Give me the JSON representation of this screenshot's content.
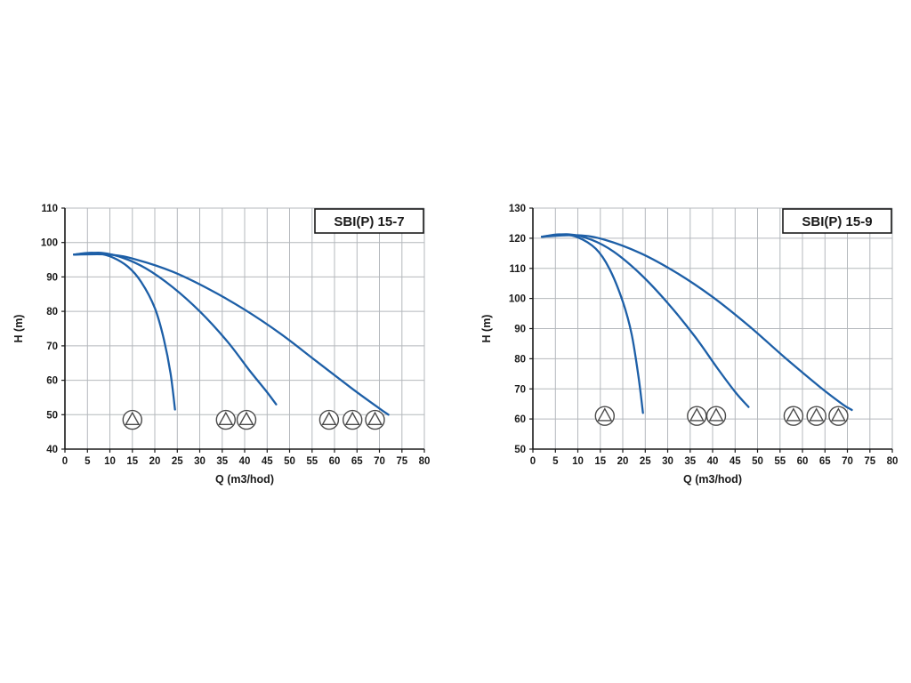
{
  "page": {
    "background": "#ffffff"
  },
  "chart_data": [
    {
      "id": "sbi-p-15-7",
      "type": "line",
      "title": "SBI(P) 15-7",
      "xlabel": "Q (m3/hod)",
      "ylabel": "H (m)",
      "xlim": [
        0,
        80
      ],
      "ylim": [
        40,
        110
      ],
      "xticks": [
        0,
        5,
        10,
        15,
        20,
        25,
        30,
        35,
        40,
        45,
        50,
        55,
        60,
        65,
        70,
        75,
        80
      ],
      "yticks": [
        40,
        50,
        60,
        70,
        80,
        90,
        100,
        110
      ],
      "grid": true,
      "legend": "none",
      "curve_color": "#1d5fa7",
      "grid_color": "#b4b8bc",
      "axis_color": "#1a1a1a",
      "icon_color": "#4a4a4a",
      "series": [
        {
          "name": "1-pump",
          "points": [
            [
              2,
              96.5
            ],
            [
              6,
              97
            ],
            [
              10,
              96
            ],
            [
              14,
              93
            ],
            [
              17,
              88.5
            ],
            [
              20,
              81
            ],
            [
              22,
              72
            ],
            [
              23.5,
              62
            ],
            [
              24.5,
              51.5
            ]
          ]
        },
        {
          "name": "2-pumps",
          "points": [
            [
              2,
              96.5
            ],
            [
              8,
              97
            ],
            [
              13,
              95.5
            ],
            [
              18,
              92.5
            ],
            [
              24,
              87
            ],
            [
              30,
              80
            ],
            [
              36,
              71.5
            ],
            [
              41,
              63
            ],
            [
              45,
              56.5
            ],
            [
              47,
              53
            ]
          ]
        },
        {
          "name": "3-pumps",
          "points": [
            [
              2,
              96.5
            ],
            [
              10,
              96.5
            ],
            [
              16,
              95
            ],
            [
              24,
              91.5
            ],
            [
              32,
              86.5
            ],
            [
              40,
              80.5
            ],
            [
              48,
              73.5
            ],
            [
              56,
              65.5
            ],
            [
              64,
              57.5
            ],
            [
              70,
              51.8
            ],
            [
              72,
              50
            ]
          ]
        }
      ],
      "pump_icons": {
        "h": 48.5,
        "groups": [
          [
            15
          ],
          [
            35.8,
            40.4
          ],
          [
            58.8,
            64,
            69
          ]
        ]
      }
    },
    {
      "id": "sbi-p-15-9",
      "type": "line",
      "title": "SBI(P) 15-9",
      "xlabel": "Q (m3/hod)",
      "ylabel": "H (m)",
      "xlim": [
        0,
        80
      ],
      "ylim": [
        50,
        130
      ],
      "xticks": [
        0,
        5,
        10,
        15,
        20,
        25,
        30,
        35,
        40,
        45,
        50,
        55,
        60,
        65,
        70,
        75,
        80
      ],
      "yticks": [
        50,
        60,
        70,
        80,
        90,
        100,
        110,
        120,
        130
      ],
      "grid": true,
      "legend": "none",
      "curve_color": "#1d5fa7",
      "grid_color": "#b4b8bc",
      "axis_color": "#1a1a1a",
      "icon_color": "#4a4a4a",
      "series": [
        {
          "name": "1-pump",
          "points": [
            [
              2,
              120.5
            ],
            [
              6,
              121.3
            ],
            [
              10,
              120.3
            ],
            [
              14,
              116.5
            ],
            [
              17,
              110
            ],
            [
              20,
              99
            ],
            [
              22,
              88
            ],
            [
              23.5,
              74
            ],
            [
              24.5,
              62
            ]
          ]
        },
        {
          "name": "2-pumps",
          "points": [
            [
              2,
              120.5
            ],
            [
              8,
              121.3
            ],
            [
              13,
              119.5
            ],
            [
              18,
              115.5
            ],
            [
              24,
              108
            ],
            [
              30,
              98.5
            ],
            [
              36,
              87.5
            ],
            [
              41,
              77
            ],
            [
              45,
              69
            ],
            [
              48,
              64
            ]
          ]
        },
        {
          "name": "3-pumps",
          "points": [
            [
              2,
              120.5
            ],
            [
              10,
              121
            ],
            [
              16,
              119.5
            ],
            [
              24,
              115
            ],
            [
              32,
              108.5
            ],
            [
              40,
              100.5
            ],
            [
              48,
              91
            ],
            [
              56,
              80.5
            ],
            [
              64,
              70.5
            ],
            [
              69,
              64.8
            ],
            [
              71,
              63
            ]
          ]
        }
      ],
      "pump_icons": {
        "h": 61,
        "groups": [
          [
            16
          ],
          [
            36.5,
            40.8
          ],
          [
            58,
            63.1,
            68
          ]
        ]
      }
    }
  ]
}
